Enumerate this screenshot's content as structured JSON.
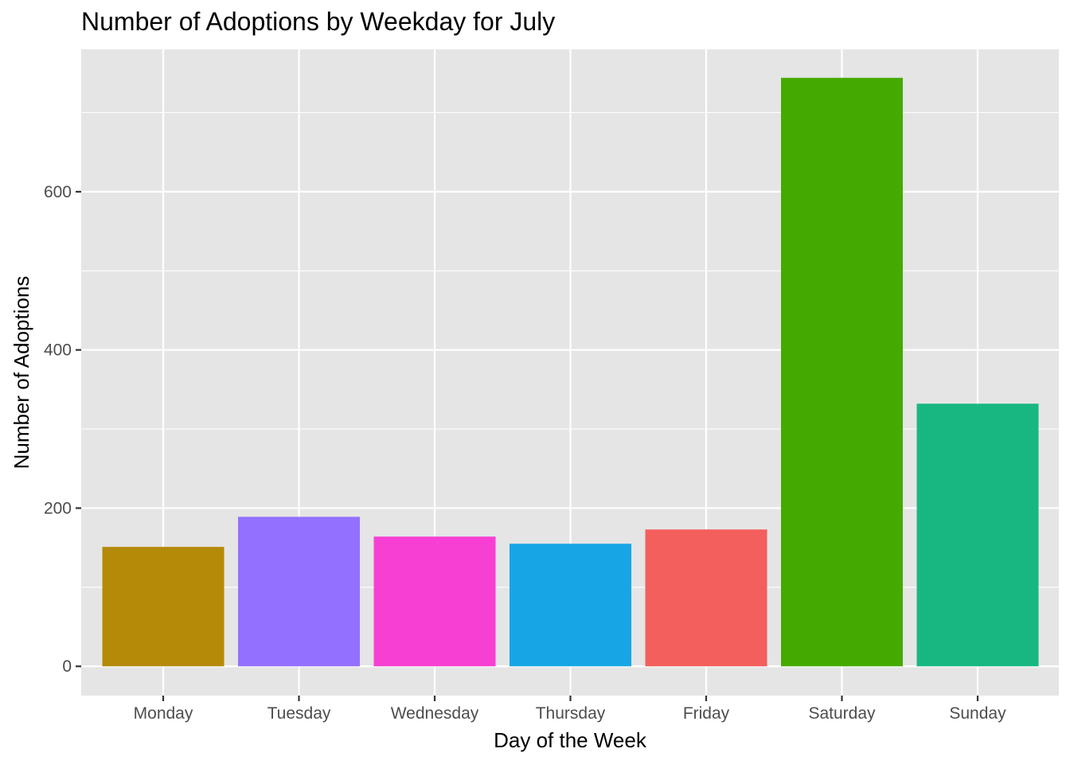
{
  "chart_data": {
    "type": "bar",
    "title": "Number of Adoptions by Weekday for July",
    "xlabel": "Day of the Week",
    "ylabel": "Number of Adoptions",
    "categories": [
      "Monday",
      "Tuesday",
      "Wednesday",
      "Thursday",
      "Friday",
      "Saturday",
      "Sunday"
    ],
    "values": [
      151,
      189,
      164,
      155,
      173,
      744,
      332
    ],
    "colors": [
      "#B58A09",
      "#9370FF",
      "#F740D3",
      "#17A6E5",
      "#F35F5C",
      "#45AA00",
      "#18B782"
    ],
    "ylim": [
      -37,
      780
    ],
    "yticks": [
      0,
      200,
      400,
      600
    ],
    "ytick_labels": [
      "0",
      "200",
      "400",
      "600"
    ],
    "grid": true,
    "panel_background": "#E5E5E5",
    "legend": "none"
  }
}
